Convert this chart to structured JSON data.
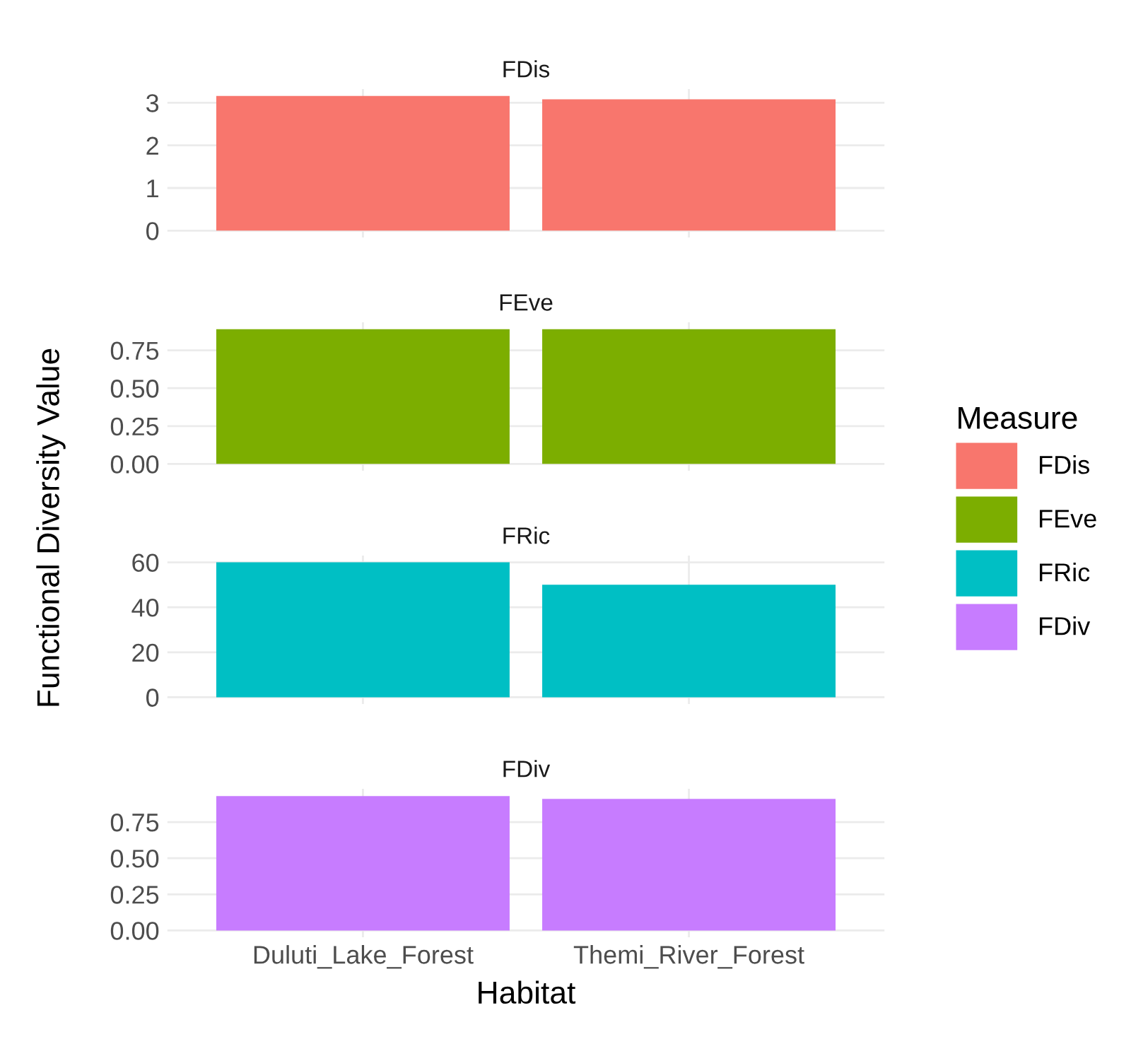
{
  "chart_data": [
    {
      "type": "bar",
      "title": "FDis",
      "ylabel": "Functional Diversity Value",
      "legend_title": "Measure",
      "legend": "right",
      "categories": [
        null,
        null
      ],
      "tick_labels": "y",
      "grid": true,
      "series": [
        {
          "name": "FDis",
          "color": "#f8766d",
          "values": [
            3.16,
            3.08
          ]
        }
      ],
      "ylim": [
        -0.16,
        3.32
      ],
      "yticks": [
        0,
        1,
        2,
        3
      ]
    },
    {
      "type": "bar",
      "title": "FEve",
      "categories": [
        null,
        null
      ],
      "tick_labels": "y",
      "grid": true,
      "series": [
        {
          "name": "FEve",
          "color": "#7cae00",
          "values": [
            0.89,
            0.89
          ]
        }
      ],
      "ylim": [
        -0.045,
        0.935
      ],
      "yticks": [
        {
          "value": 0,
          "label": "0.00"
        },
        {
          "value": 0.25,
          "label": "0.25"
        },
        {
          "value": 0.5,
          "label": "0.50"
        },
        {
          "value": 0.75,
          "label": "0.75"
        }
      ]
    },
    {
      "type": "bar",
      "title": "FRic",
      "categories": [
        null,
        null
      ],
      "tick_labels": "y",
      "grid": true,
      "series": [
        {
          "name": "FRic",
          "color": "#00bfc4",
          "values": [
            60,
            50
          ]
        }
      ],
      "ylim": [
        -3,
        63
      ],
      "yticks": [
        0,
        20,
        40,
        60
      ]
    },
    {
      "type": "bar",
      "title": "FDiv",
      "xlabel": "Habitat",
      "categories": [
        "Duluti_Lake_Forest",
        "Themi_River_Forest"
      ],
      "grid": true,
      "series": [
        {
          "name": "FDiv",
          "color": "#c77cff",
          "values": [
            0.93,
            0.91
          ]
        }
      ],
      "ylim": [
        -0.047,
        0.98
      ],
      "yticks": [
        {
          "value": 0,
          "label": "0.00"
        },
        {
          "value": 0.25,
          "label": "0.25"
        },
        {
          "value": 0.5,
          "label": "0.50"
        },
        {
          "value": 0.75,
          "label": "0.75"
        }
      ]
    }
  ]
}
